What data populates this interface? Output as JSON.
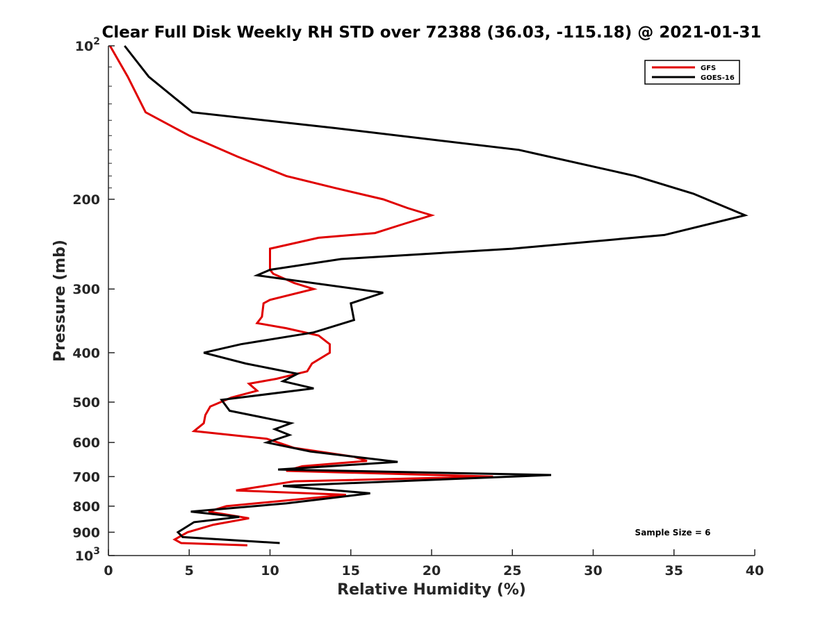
{
  "chart_data": {
    "type": "line",
    "title": "Clear Full Disk Weekly RH STD over 72388 (36.03, -115.18) @ 2021-01-31",
    "xlabel": "Relative Humidity (%)",
    "ylabel": "Pressure (mb)",
    "xlim": [
      0,
      40
    ],
    "ylim": [
      100,
      1000
    ],
    "yscale": "log",
    "y_reversed": true,
    "grid": false,
    "x_ticks": [
      0,
      5,
      10,
      15,
      20,
      25,
      30,
      35,
      40
    ],
    "y_ticks": [
      {
        "value": 100,
        "base": "10",
        "exp": "2"
      },
      {
        "value": 200,
        "label": "200"
      },
      {
        "value": 300,
        "label": "300"
      },
      {
        "value": 400,
        "label": "400"
      },
      {
        "value": 500,
        "label": "500"
      },
      {
        "value": 600,
        "label": "600"
      },
      {
        "value": 700,
        "label": "700"
      },
      {
        "value": 800,
        "label": "800"
      },
      {
        "value": 900,
        "label": "900"
      },
      {
        "value": 1000,
        "base": "10",
        "exp": "3"
      }
    ],
    "legend_position": "top-right",
    "series": [
      {
        "name": "GFS",
        "color": "#e00000",
        "points": [
          [
            0.1,
            100
          ],
          [
            1.2,
            115
          ],
          [
            2.3,
            135
          ],
          [
            5.0,
            150
          ],
          [
            8.0,
            165
          ],
          [
            11.0,
            180
          ],
          [
            14.0,
            190
          ],
          [
            17.0,
            200
          ],
          [
            18.5,
            208
          ],
          [
            20.0,
            215
          ],
          [
            18.0,
            225
          ],
          [
            16.5,
            233
          ],
          [
            13.0,
            238
          ],
          [
            10.0,
            250
          ],
          [
            10.0,
            275
          ],
          [
            10.2,
            280
          ],
          [
            11.5,
            292
          ],
          [
            12.7,
            300
          ],
          [
            10.0,
            315
          ],
          [
            9.6,
            320
          ],
          [
            9.5,
            340
          ],
          [
            9.2,
            350
          ],
          [
            11.0,
            358
          ],
          [
            13.0,
            370
          ],
          [
            13.7,
            385
          ],
          [
            13.7,
            400
          ],
          [
            12.6,
            420
          ],
          [
            12.3,
            435
          ],
          [
            10.4,
            450
          ],
          [
            8.7,
            460
          ],
          [
            9.2,
            475
          ],
          [
            7.6,
            490
          ],
          [
            6.3,
            510
          ],
          [
            6.0,
            530
          ],
          [
            5.9,
            550
          ],
          [
            5.3,
            570
          ],
          [
            9.8,
            590
          ],
          [
            11.5,
            615
          ],
          [
            15.2,
            640
          ],
          [
            16.0,
            652
          ],
          [
            12.0,
            668
          ],
          [
            11.0,
            682
          ],
          [
            23.8,
            700
          ],
          [
            11.5,
            715
          ],
          [
            7.9,
            745
          ],
          [
            14.7,
            760
          ],
          [
            7.3,
            800
          ],
          [
            6.2,
            820
          ],
          [
            8.7,
            845
          ],
          [
            6.5,
            870
          ],
          [
            4.9,
            900
          ],
          [
            4.1,
            930
          ],
          [
            4.5,
            945
          ],
          [
            8.6,
            955
          ]
        ]
      },
      {
        "name": "GOES-16",
        "color": "#000000",
        "points": [
          [
            1.0,
            100
          ],
          [
            2.5,
            115
          ],
          [
            5.2,
            135
          ],
          [
            14.0,
            145
          ],
          [
            25.4,
            160
          ],
          [
            32.6,
            180
          ],
          [
            36.2,
            195
          ],
          [
            39.4,
            215
          ],
          [
            34.4,
            235
          ],
          [
            25.0,
            250
          ],
          [
            14.4,
            262
          ],
          [
            10.0,
            275
          ],
          [
            9.2,
            282
          ],
          [
            17.0,
            305
          ],
          [
            15.0,
            320
          ],
          [
            15.2,
            345
          ],
          [
            12.7,
            365
          ],
          [
            8.2,
            385
          ],
          [
            5.9,
            400
          ],
          [
            8.5,
            420
          ],
          [
            11.7,
            440
          ],
          [
            10.8,
            455
          ],
          [
            12.7,
            470
          ],
          [
            7.0,
            495
          ],
          [
            7.5,
            520
          ],
          [
            11.3,
            550
          ],
          [
            10.3,
            565
          ],
          [
            11.2,
            580
          ],
          [
            9.8,
            600
          ],
          [
            12.5,
            625
          ],
          [
            17.9,
            655
          ],
          [
            10.5,
            678
          ],
          [
            27.4,
            695
          ],
          [
            10.8,
            730
          ],
          [
            16.2,
            755
          ],
          [
            11.0,
            790
          ],
          [
            5.1,
            820
          ],
          [
            8.1,
            840
          ],
          [
            5.3,
            860
          ],
          [
            4.3,
            900
          ],
          [
            4.6,
            920
          ],
          [
            10.6,
            945
          ]
        ]
      }
    ],
    "annotation": "Sample Size = 6"
  }
}
